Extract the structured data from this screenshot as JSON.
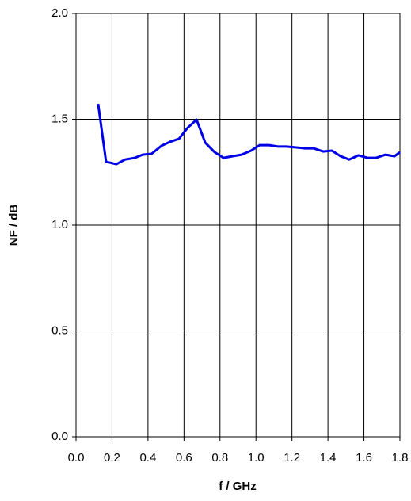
{
  "chart_data": {
    "type": "line",
    "xlabel": "f / GHz",
    "ylabel": "NF / dB",
    "color": "#0000e6",
    "grid": true,
    "xlim": [
      0,
      1.8
    ],
    "xticks": [
      {
        "value": 0,
        "label": "0.0"
      },
      0.2,
      0.4,
      0.6,
      0.8,
      {
        "value": 1,
        "label": "1.0"
      },
      1.2,
      1.4,
      1.6,
      1.8
    ],
    "ylim": [
      0,
      2
    ],
    "yticks": [
      {
        "value": 0,
        "label": "0.0"
      },
      0.5,
      {
        "value": 1,
        "label": "1.0"
      },
      1.5,
      {
        "value": 2,
        "label": "2.0"
      }
    ],
    "x": [
      0.123,
      0.167,
      0.224,
      0.273,
      0.326,
      0.37,
      0.42,
      0.475,
      0.52,
      0.572,
      0.62,
      0.67,
      0.718,
      0.77,
      0.82,
      0.87,
      0.92,
      0.973,
      1.02,
      1.074,
      1.122,
      1.17,
      1.224,
      1.272,
      1.32,
      1.373,
      1.422,
      1.47,
      1.518,
      1.57,
      1.62,
      1.668,
      1.72,
      1.77,
      1.8
    ],
    "values": [
      1.573,
      1.3,
      1.288,
      1.31,
      1.318,
      1.333,
      1.337,
      1.375,
      1.393,
      1.408,
      1.46,
      1.498,
      1.39,
      1.345,
      1.318,
      1.326,
      1.333,
      1.352,
      1.378,
      1.378,
      1.371,
      1.371,
      1.367,
      1.363,
      1.363,
      1.348,
      1.352,
      1.326,
      1.31,
      1.33,
      1.318,
      1.318,
      1.333,
      1.326,
      1.345
    ]
  }
}
